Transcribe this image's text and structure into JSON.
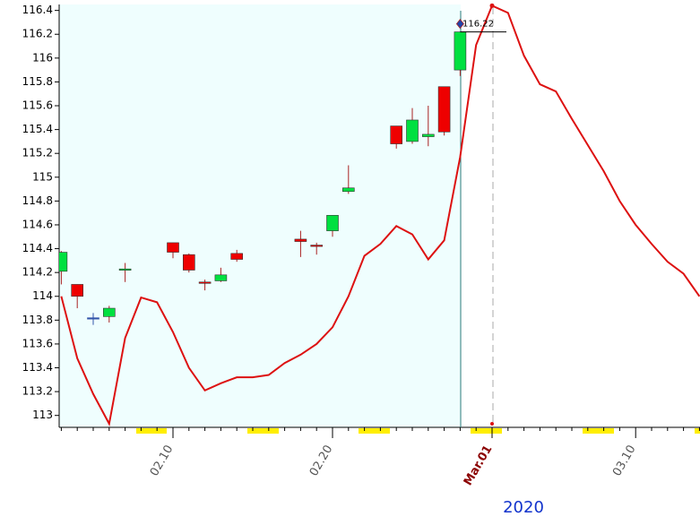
{
  "chart_data": {
    "type": "candlestick",
    "xlabel": "2020",
    "categories": [
      null,
      null,
      null,
      null,
      null,
      null,
      null,
      "02.10",
      null,
      null,
      null,
      null,
      null,
      null,
      null,
      null,
      null,
      "02.20",
      null,
      null,
      null,
      null,
      null,
      null,
      null,
      null,
      null,
      "Mar.01",
      null,
      null,
      null,
      null,
      null,
      null,
      null,
      null,
      "03.10",
      null,
      null,
      null,
      null
    ],
    "candles": {
      "up_color": "#00e040",
      "down_color": "#ee0000",
      "open": [
        114.21,
        114.1,
        113.82,
        113.83,
        114.22,
        null,
        null,
        114.45,
        114.35,
        114.12,
        114.13,
        114.36,
        null,
        null,
        null,
        114.48,
        114.43,
        114.55,
        114.88,
        null,
        null,
        115.43,
        115.3,
        115.34,
        115.76,
        115.9,
        null,
        null,
        null,
        null,
        null,
        null,
        null,
        null,
        null,
        null,
        null,
        null,
        null,
        null,
        null
      ],
      "high": [
        114.38,
        114.1,
        113.86,
        113.92,
        114.28,
        null,
        null,
        114.45,
        114.36,
        114.14,
        114.24,
        114.39,
        null,
        null,
        null,
        114.55,
        114.45,
        114.68,
        115.1,
        null,
        null,
        115.43,
        115.58,
        115.6,
        115.76,
        116.22,
        null,
        null,
        null,
        null,
        null,
        null,
        null,
        null,
        null,
        null,
        null,
        null,
        null,
        null,
        null
      ],
      "low": [
        114.1,
        113.9,
        113.76,
        113.78,
        114.12,
        null,
        null,
        114.32,
        114.2,
        114.05,
        114.12,
        114.29,
        null,
        null,
        null,
        114.33,
        114.35,
        114.5,
        114.86,
        null,
        null,
        115.24,
        115.28,
        115.26,
        115.35,
        115.85,
        null,
        null,
        null,
        null,
        null,
        null,
        null,
        null,
        null,
        null,
        null,
        null,
        null,
        null,
        null
      ],
      "close": [
        114.37,
        114.0,
        113.82,
        113.9,
        114.23,
        null,
        null,
        114.37,
        114.22,
        114.11,
        114.18,
        114.31,
        null,
        null,
        null,
        114.46,
        114.42,
        114.68,
        114.91,
        null,
        null,
        115.28,
        115.48,
        115.36,
        115.38,
        116.22,
        null,
        null,
        null,
        null,
        null,
        null,
        null,
        null,
        null,
        null,
        null,
        null,
        null,
        null,
        null
      ]
    },
    "series": [
      {
        "color": "#dd1111",
        "values": [
          114.0,
          113.48,
          113.18,
          112.93,
          113.65,
          113.99,
          113.95,
          113.7,
          113.4,
          113.21,
          113.27,
          113.32,
          113.32,
          113.34,
          113.44,
          113.51,
          113.6,
          113.74,
          114.0,
          114.34,
          114.44,
          114.59,
          114.52,
          114.31,
          114.47,
          115.17,
          116.11,
          116.44,
          116.38,
          116.02,
          115.78,
          115.72,
          115.49,
          115.27,
          115.05,
          114.8,
          114.6,
          114.44,
          114.29,
          114.19,
          114.0
        ]
      }
    ],
    "annotation": {
      "label": "116.22",
      "value": 116.22
    },
    "ylim": [
      112.9,
      116.45
    ],
    "yticks": [
      113,
      113.2,
      113.4,
      113.6,
      113.8,
      114,
      114.2,
      114.4,
      114.6,
      114.8,
      115,
      115.2,
      115.4,
      115.6,
      115.8,
      116,
      116.2,
      116.4
    ]
  }
}
